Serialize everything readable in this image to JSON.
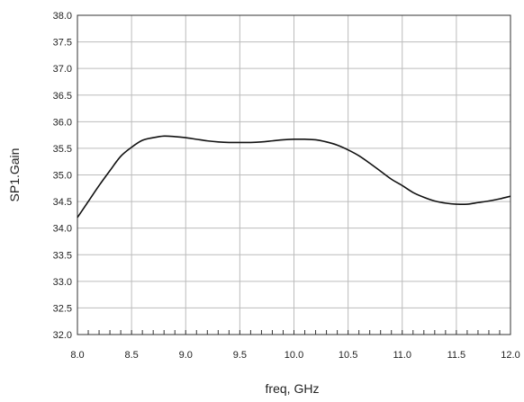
{
  "chart_data": {
    "type": "line",
    "xlabel": "freq, GHz",
    "ylabel": "SP1.Gain",
    "xlim": [
      8.0,
      12.0
    ],
    "ylim": [
      32.0,
      38.0
    ],
    "x_ticks": [
      "8.0",
      "8.5",
      "9.0",
      "9.5",
      "10.0",
      "10.5",
      "11.0",
      "11.5",
      "12.0"
    ],
    "y_ticks": [
      "32.0",
      "32.5",
      "33.0",
      "33.5",
      "34.0",
      "34.5",
      "35.0",
      "35.5",
      "36.0",
      "36.5",
      "37.0",
      "37.5",
      "38.0"
    ],
    "grid": true,
    "series": [
      {
        "x": [
          8.0,
          8.1,
          8.2,
          8.3,
          8.4,
          8.5,
          8.6,
          8.7,
          8.8,
          8.9,
          9.0,
          9.1,
          9.2,
          9.3,
          9.4,
          9.5,
          9.6,
          9.7,
          9.8,
          9.9,
          10.0,
          10.1,
          10.2,
          10.3,
          10.4,
          10.5,
          10.6,
          10.7,
          10.8,
          10.9,
          11.0,
          11.1,
          11.2,
          11.3,
          11.4,
          11.5,
          11.6,
          11.7,
          11.8,
          11.9,
          12.0
        ],
        "y": [
          34.2,
          34.5,
          34.8,
          35.08,
          35.35,
          35.52,
          35.65,
          35.7,
          35.73,
          35.72,
          35.7,
          35.67,
          35.64,
          35.62,
          35.61,
          35.61,
          35.61,
          35.62,
          35.64,
          35.66,
          35.67,
          35.67,
          35.66,
          35.62,
          35.56,
          35.47,
          35.36,
          35.22,
          35.07,
          34.92,
          34.8,
          34.67,
          34.58,
          34.51,
          34.47,
          34.45,
          34.45,
          34.48,
          34.51,
          34.55,
          34.6
        ]
      }
    ],
    "colors": {
      "line": "#111111",
      "grid": "#bcbcbc",
      "axes": "#333333"
    }
  }
}
